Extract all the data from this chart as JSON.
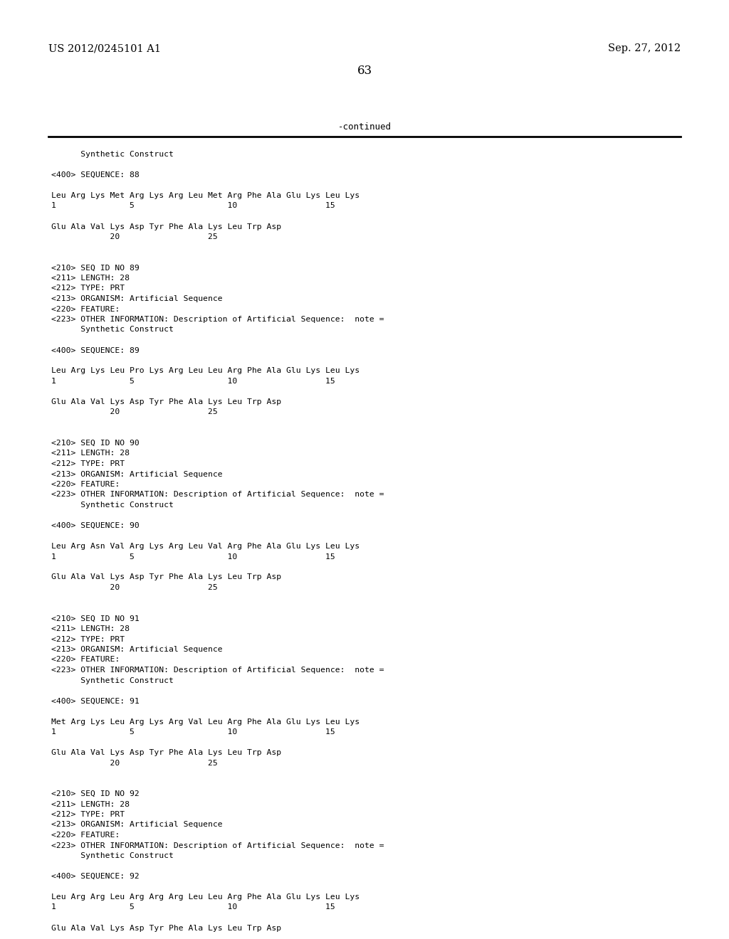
{
  "bg_color": "#ffffff",
  "header_left": "US 2012/0245101 A1",
  "header_right": "Sep. 27, 2012",
  "page_number": "63",
  "continued_label": "-continued",
  "content_lines": [
    "      Synthetic Construct",
    "",
    "<400> SEQUENCE: 88",
    "",
    "Leu Arg Lys Met Arg Lys Arg Leu Met Arg Phe Ala Glu Lys Leu Lys",
    "1               5                   10                  15",
    "",
    "Glu Ala Val Lys Asp Tyr Phe Ala Lys Leu Trp Asp",
    "            20                  25",
    "",
    "",
    "<210> SEQ ID NO 89",
    "<211> LENGTH: 28",
    "<212> TYPE: PRT",
    "<213> ORGANISM: Artificial Sequence",
    "<220> FEATURE:",
    "<223> OTHER INFORMATION: Description of Artificial Sequence:  note =",
    "      Synthetic Construct",
    "",
    "<400> SEQUENCE: 89",
    "",
    "Leu Arg Lys Leu Pro Lys Arg Leu Leu Arg Phe Ala Glu Lys Leu Lys",
    "1               5                   10                  15",
    "",
    "Glu Ala Val Lys Asp Tyr Phe Ala Lys Leu Trp Asp",
    "            20                  25",
    "",
    "",
    "<210> SEQ ID NO 90",
    "<211> LENGTH: 28",
    "<212> TYPE: PRT",
    "<213> ORGANISM: Artificial Sequence",
    "<220> FEATURE:",
    "<223> OTHER INFORMATION: Description of Artificial Sequence:  note =",
    "      Synthetic Construct",
    "",
    "<400> SEQUENCE: 90",
    "",
    "Leu Arg Asn Val Arg Lys Arg Leu Val Arg Phe Ala Glu Lys Leu Lys",
    "1               5                   10                  15",
    "",
    "Glu Ala Val Lys Asp Tyr Phe Ala Lys Leu Trp Asp",
    "            20                  25",
    "",
    "",
    "<210> SEQ ID NO 91",
    "<211> LENGTH: 28",
    "<212> TYPE: PRT",
    "<213> ORGANISM: Artificial Sequence",
    "<220> FEATURE:",
    "<223> OTHER INFORMATION: Description of Artificial Sequence:  note =",
    "      Synthetic Construct",
    "",
    "<400> SEQUENCE: 91",
    "",
    "Met Arg Lys Leu Arg Lys Arg Val Leu Arg Phe Ala Glu Lys Leu Lys",
    "1               5                   10                  15",
    "",
    "Glu Ala Val Lys Asp Tyr Phe Ala Lys Leu Trp Asp",
    "            20                  25",
    "",
    "",
    "<210> SEQ ID NO 92",
    "<211> LENGTH: 28",
    "<212> TYPE: PRT",
    "<213> ORGANISM: Artificial Sequence",
    "<220> FEATURE:",
    "<223> OTHER INFORMATION: Description of Artificial Sequence:  note =",
    "      Synthetic Construct",
    "",
    "<400> SEQUENCE: 92",
    "",
    "Leu Arg Arg Leu Arg Arg Arg Leu Leu Arg Phe Ala Glu Lys Leu Lys",
    "1               5                   10                  15",
    "",
    "Glu Ala Val Lys Asp Tyr Phe Ala Lys Leu Trp Asp"
  ]
}
